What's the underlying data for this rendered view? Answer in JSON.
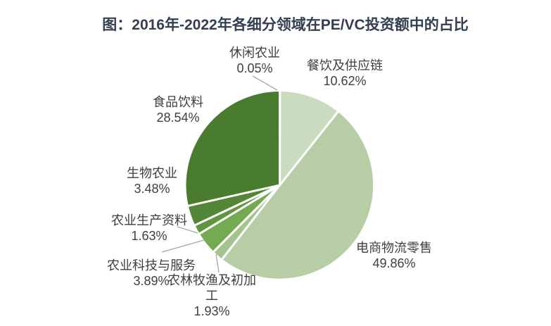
{
  "title": "图：2016年-2022年各细分领域在PE/VC投资额中的占比",
  "chart_data": {
    "type": "pie",
    "title": "图：2016年-2022年各细分领域在PE/VC投资额中的占比",
    "unit": "percent",
    "direction": "clockwise",
    "start_angle_deg": 0,
    "legend": "none",
    "label_style": "category name + percentage, outside end",
    "slices": [
      {
        "id": "leisure-agriculture",
        "name": "休闲农业",
        "value": 0.05,
        "display": "0.05%",
        "color": "#8fbc74"
      },
      {
        "id": "catering-supply-chain",
        "name": "餐饮及供应链",
        "value": 10.62,
        "display": "10.62%",
        "color": "#c9dcbf"
      },
      {
        "id": "ecommerce-logistics-retail",
        "name": "电商物流零售",
        "value": 49.86,
        "display": "49.86%",
        "color": "#b7cda6"
      },
      {
        "id": "farming-primary-processing",
        "name": "农林牧渔及初加工",
        "value": 1.93,
        "display": "1.93%",
        "color": "#a4c38e"
      },
      {
        "id": "agri-tech-services",
        "name": "农业科技与服务",
        "value": 3.89,
        "display": "3.89%",
        "color": "#74aa52"
      },
      {
        "id": "agri-production-materials",
        "name": "农业生产资料",
        "value": 1.63,
        "display": "1.63%",
        "color": "#619641"
      },
      {
        "id": "bio-agriculture",
        "name": "生物农业",
        "value": 3.48,
        "display": "3.48%",
        "color": "#538637"
      },
      {
        "id": "food-beverage",
        "name": "食品饮料",
        "value": 28.54,
        "display": "28.54%",
        "color": "#4a7c2f"
      }
    ]
  }
}
